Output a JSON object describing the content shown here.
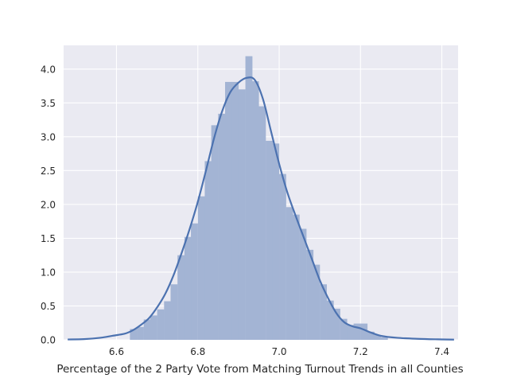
{
  "chart_data": {
    "type": "bar",
    "subtype": "histogram-with-kde",
    "title": "",
    "xlabel": "Percentage of the 2 Party Vote from Matching Turnout Trends in all Counties",
    "ylabel": "",
    "xlim": [
      6.47,
      7.44
    ],
    "ylim": [
      0.0,
      4.35
    ],
    "xticks": [
      6.6,
      6.8,
      7.0,
      7.2,
      7.4
    ],
    "xtick_labels": [
      "6.6",
      "6.8",
      "7.0",
      "7.2",
      "7.4"
    ],
    "yticks": [
      0.0,
      0.5,
      1.0,
      1.5,
      2.0,
      2.5,
      3.0,
      3.5,
      4.0
    ],
    "ytick_labels": [
      "0.0",
      "0.5",
      "1.0",
      "1.5",
      "2.0",
      "2.5",
      "3.0",
      "3.5",
      "4.0"
    ],
    "grid": true,
    "style": "seaborn-darkgrid",
    "colors": {
      "background": "#eaeaf2",
      "grid": "#ffffff",
      "bar": "#a3b4d4",
      "line": "#4c72b0"
    },
    "histogram": {
      "bin_width": 0.0167,
      "bins": [
        {
          "x0": 6.633,
          "height": 0.16
        },
        {
          "x0": 6.65,
          "height": 0.19
        },
        {
          "x0": 6.667,
          "height": 0.3
        },
        {
          "x0": 6.683,
          "height": 0.36
        },
        {
          "x0": 6.7,
          "height": 0.45
        },
        {
          "x0": 6.717,
          "height": 0.57
        },
        {
          "x0": 6.733,
          "height": 0.82
        },
        {
          "x0": 6.75,
          "height": 1.25
        },
        {
          "x0": 6.767,
          "height": 1.52
        },
        {
          "x0": 6.783,
          "height": 1.72
        },
        {
          "x0": 6.8,
          "height": 2.12
        },
        {
          "x0": 6.817,
          "height": 2.64
        },
        {
          "x0": 6.833,
          "height": 3.17
        },
        {
          "x0": 6.85,
          "height": 3.34
        },
        {
          "x0": 6.867,
          "height": 3.81
        },
        {
          "x0": 6.883,
          "height": 3.81
        },
        {
          "x0": 6.9,
          "height": 3.7
        },
        {
          "x0": 6.917,
          "height": 4.19
        },
        {
          "x0": 6.933,
          "height": 3.82
        },
        {
          "x0": 6.95,
          "height": 3.45
        },
        {
          "x0": 6.967,
          "height": 2.94
        },
        {
          "x0": 6.983,
          "height": 2.9
        },
        {
          "x0": 7.0,
          "height": 2.45
        },
        {
          "x0": 7.017,
          "height": 1.96
        },
        {
          "x0": 7.033,
          "height": 1.85
        },
        {
          "x0": 7.05,
          "height": 1.64
        },
        {
          "x0": 7.067,
          "height": 1.33
        },
        {
          "x0": 7.083,
          "height": 1.11
        },
        {
          "x0": 7.1,
          "height": 0.82
        },
        {
          "x0": 7.117,
          "height": 0.58
        },
        {
          "x0": 7.133,
          "height": 0.46
        },
        {
          "x0": 7.15,
          "height": 0.31
        },
        {
          "x0": 7.167,
          "height": 0.22
        },
        {
          "x0": 7.183,
          "height": 0.24
        },
        {
          "x0": 7.2,
          "height": 0.24
        },
        {
          "x0": 7.217,
          "height": 0.12
        },
        {
          "x0": 7.233,
          "height": 0.07
        },
        {
          "x0": 7.25,
          "height": 0.04
        }
      ]
    },
    "kde": {
      "x": [
        6.48,
        6.52,
        6.56,
        6.59,
        6.62,
        6.64,
        6.66,
        6.68,
        6.7,
        6.72,
        6.74,
        6.76,
        6.78,
        6.8,
        6.82,
        6.84,
        6.86,
        6.88,
        6.9,
        6.92,
        6.94,
        6.96,
        6.98,
        7.0,
        7.02,
        7.04,
        7.06,
        7.08,
        7.1,
        7.12,
        7.14,
        7.16,
        7.18,
        7.2,
        7.22,
        7.25,
        7.29,
        7.34,
        7.39,
        7.43
      ],
      "y": [
        0.005,
        0.01,
        0.03,
        0.06,
        0.09,
        0.14,
        0.22,
        0.32,
        0.48,
        0.68,
        0.95,
        1.28,
        1.64,
        2.04,
        2.5,
        2.98,
        3.38,
        3.66,
        3.8,
        3.87,
        3.84,
        3.56,
        3.08,
        2.6,
        2.18,
        1.84,
        1.52,
        1.2,
        0.88,
        0.62,
        0.4,
        0.26,
        0.2,
        0.17,
        0.12,
        0.06,
        0.03,
        0.015,
        0.007,
        0.003
      ]
    }
  }
}
